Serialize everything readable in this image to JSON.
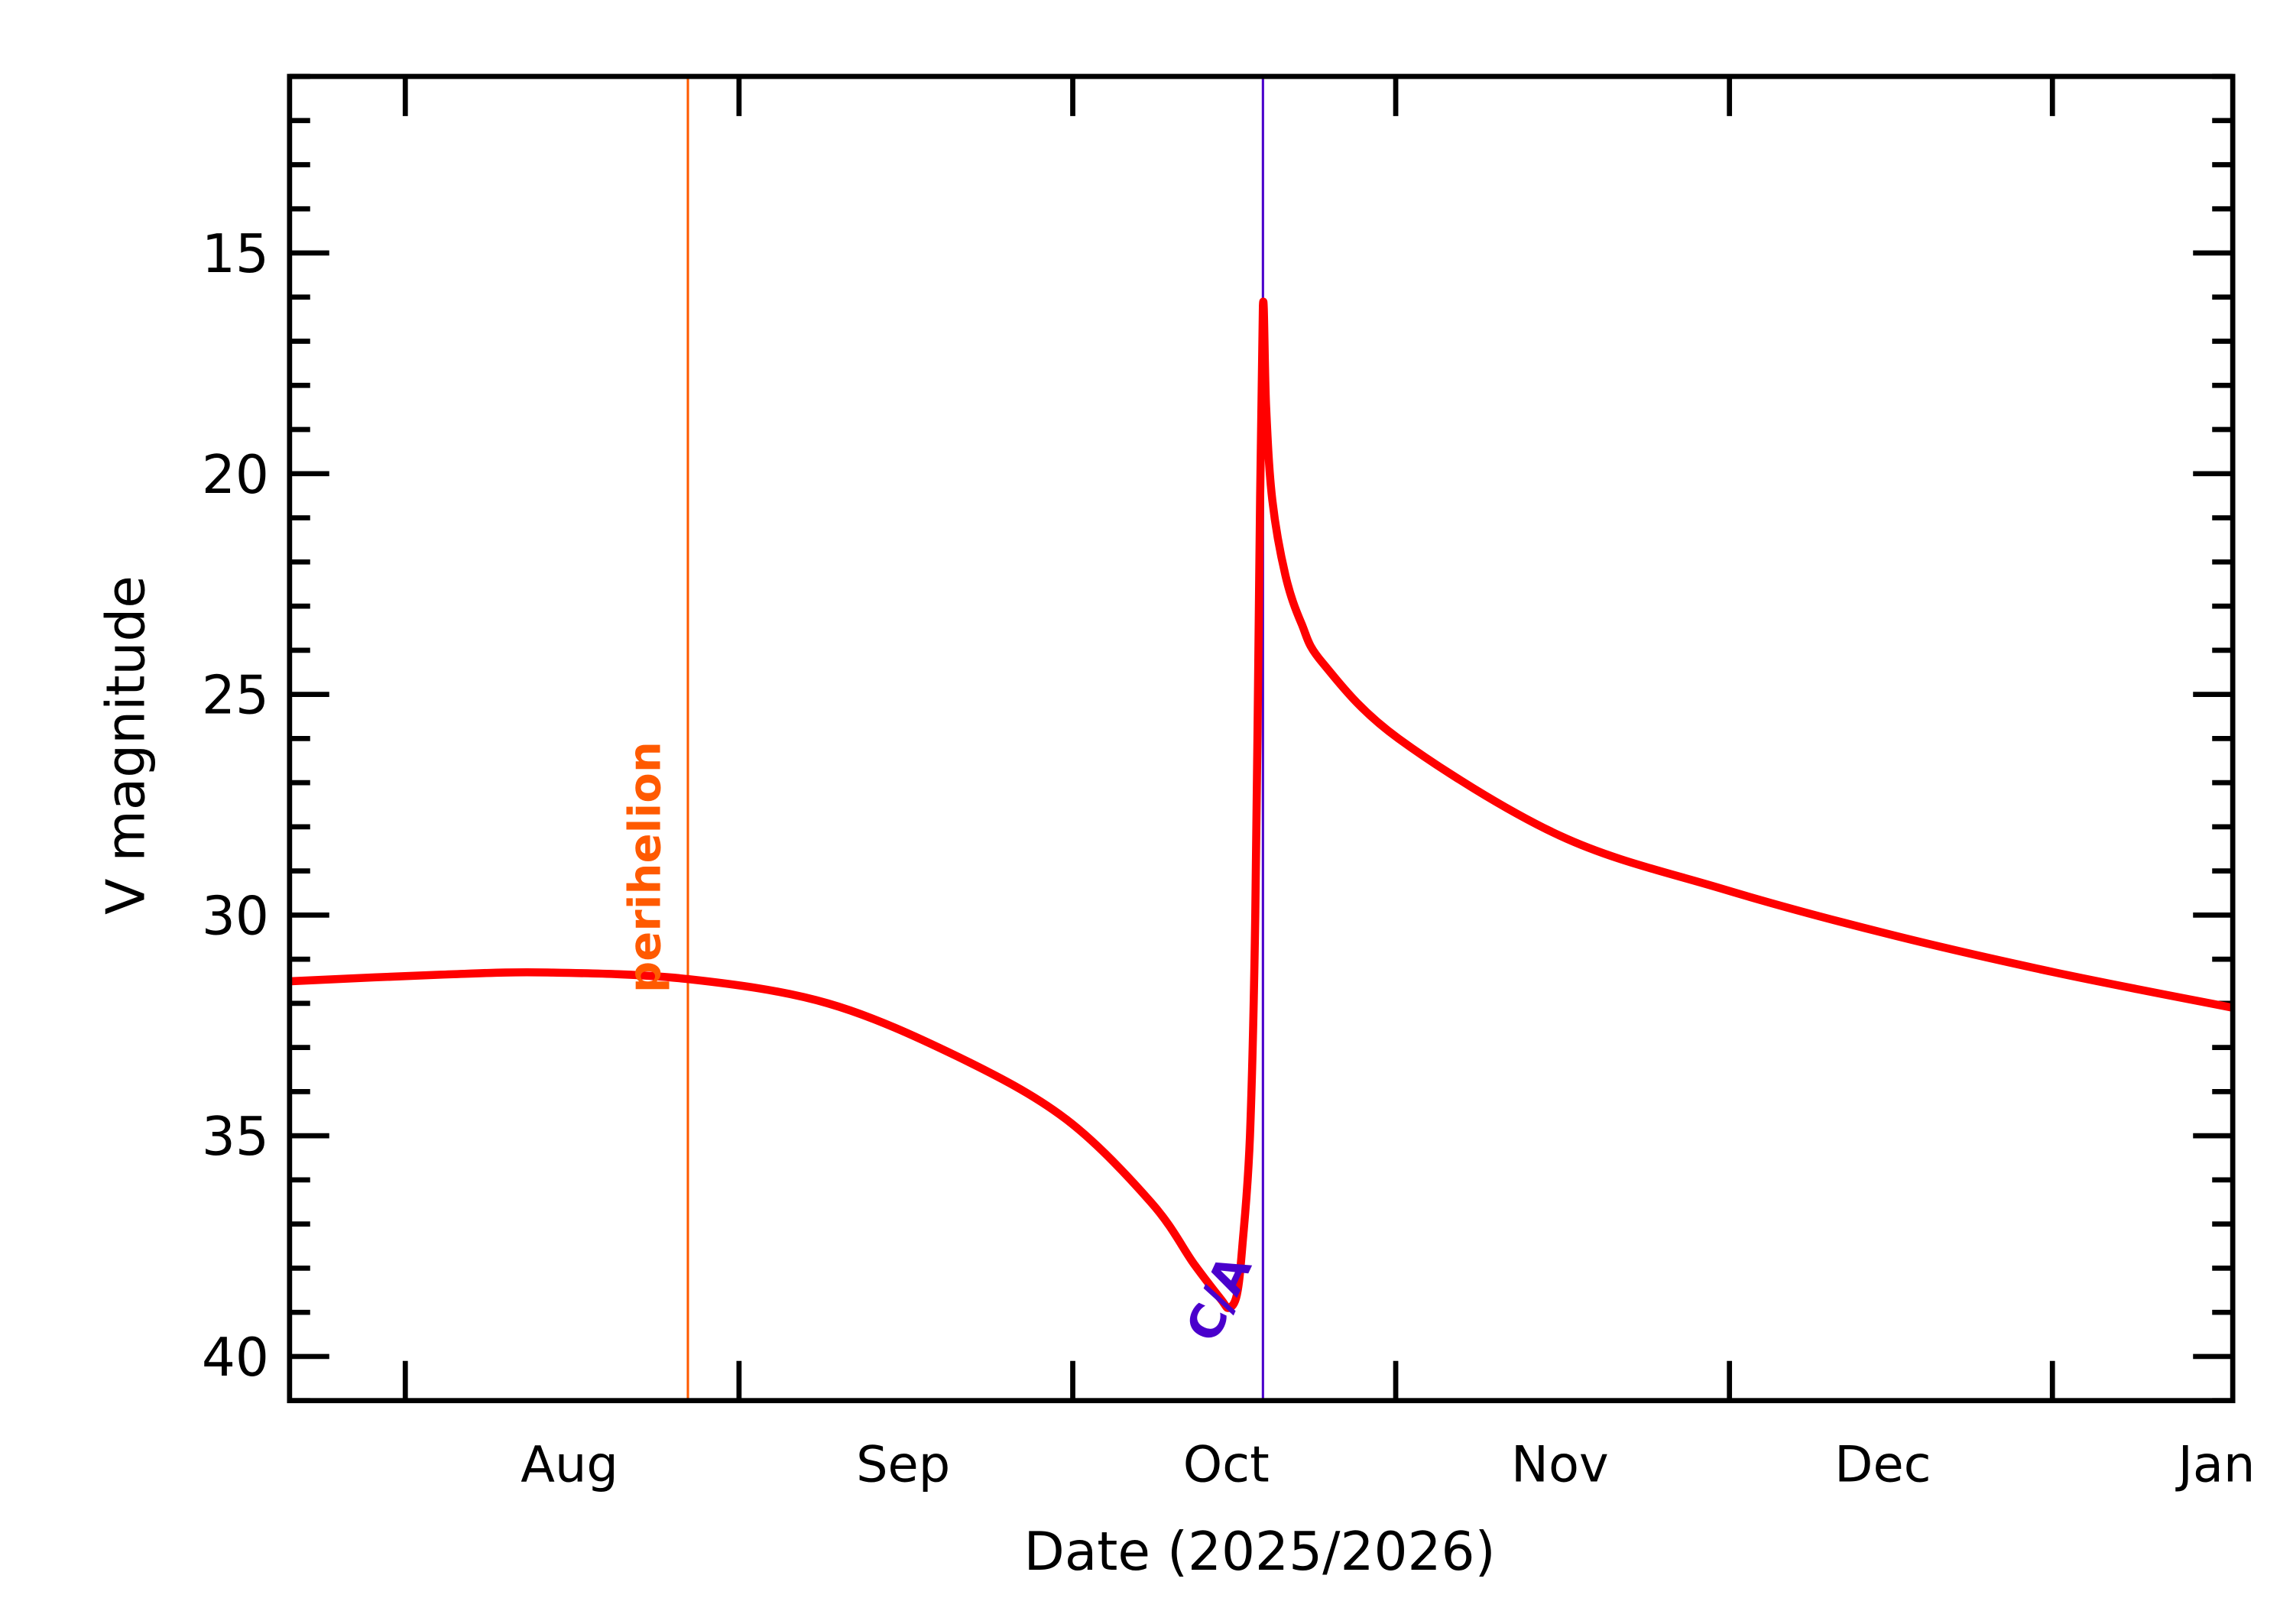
{
  "chart_data": {
    "type": "line",
    "title": "",
    "xlabel": "Date (2025/2026)",
    "ylabel": "V magnitude",
    "xlim": [
      "2025-07-06",
      "2026-01-02T12:00"
    ],
    "ylim": [
      41,
      11
    ],
    "y_inverted": true,
    "grid": false,
    "y_major_ticks": [
      15,
      20,
      25,
      30,
      35,
      40
    ],
    "y_tick_labels": [
      "15",
      "20",
      "25",
      "30",
      "35",
      "40"
    ],
    "y_minor_step": 1,
    "x_tick_labels": [
      {
        "label": "Aug",
        "date": "2025-08-01"
      },
      {
        "label": "Sep",
        "date": "2025-09-01"
      },
      {
        "label": "Oct",
        "date": "2025-10-01"
      },
      {
        "label": "Nov",
        "date": "2025-11-01"
      },
      {
        "label": "Dec",
        "date": "2025-12-01"
      },
      {
        "label": "Jan",
        "date": "2026-01-01"
      }
    ],
    "x_major_tick_dates": [
      "2025-07-16T18:00",
      "2025-08-16T18:00",
      "2025-09-16T18:00",
      "2025-10-16T18:00",
      "2025-11-16T18:00",
      "2025-12-16T18:00"
    ],
    "series": [
      {
        "color": "#ff0000",
        "points": [
          [
            "2025-07-06T00:00",
            31.5
          ],
          [
            "2025-07-20T00:00",
            31.35
          ],
          [
            "2025-07-30T00:00",
            31.3
          ],
          [
            "2025-08-12T00:00",
            31.45
          ],
          [
            "2025-08-25T00:00",
            32.0
          ],
          [
            "2025-09-06T00:00",
            33.2
          ],
          [
            "2025-09-16T00:00",
            34.6
          ],
          [
            "2025-09-24T00:00",
            36.5
          ],
          [
            "2025-09-28T00:00",
            37.9
          ],
          [
            "2025-09-30T12:00",
            38.7
          ],
          [
            "2025-10-01T06:00",
            38.9
          ],
          [
            "2025-10-02T00:00",
            38.6
          ],
          [
            "2025-10-02T12:00",
            37.5
          ],
          [
            "2025-10-03T05:00",
            35.0
          ],
          [
            "2025-10-03T17:00",
            30.0
          ],
          [
            "2025-10-04T02:00",
            22.0
          ],
          [
            "2025-10-04T10:00",
            16.2
          ],
          [
            "2025-10-04T17:00",
            18.5
          ],
          [
            "2025-10-05T07:00",
            20.6
          ],
          [
            "2025-10-06T12:00",
            22.3
          ],
          [
            "2025-10-08T00:00",
            23.4
          ],
          [
            "2025-10-10T00:00",
            24.3
          ],
          [
            "2025-10-17T00:00",
            26.0
          ],
          [
            "2025-11-01T00:00",
            28.2
          ],
          [
            "2025-11-16T00:00",
            29.4
          ],
          [
            "2025-12-01T00:00",
            30.4
          ],
          [
            "2025-12-17T00:00",
            31.3
          ],
          [
            "2026-01-02T12:00",
            32.1
          ]
        ]
      }
    ],
    "annotations": [
      {
        "label": "perihelion",
        "date": "2025-08-12T00:00",
        "color": "#ff5a00"
      },
      {
        "label": "C/A",
        "date": "2025-10-04T10:00",
        "color": "#4a00cc"
      }
    ]
  }
}
